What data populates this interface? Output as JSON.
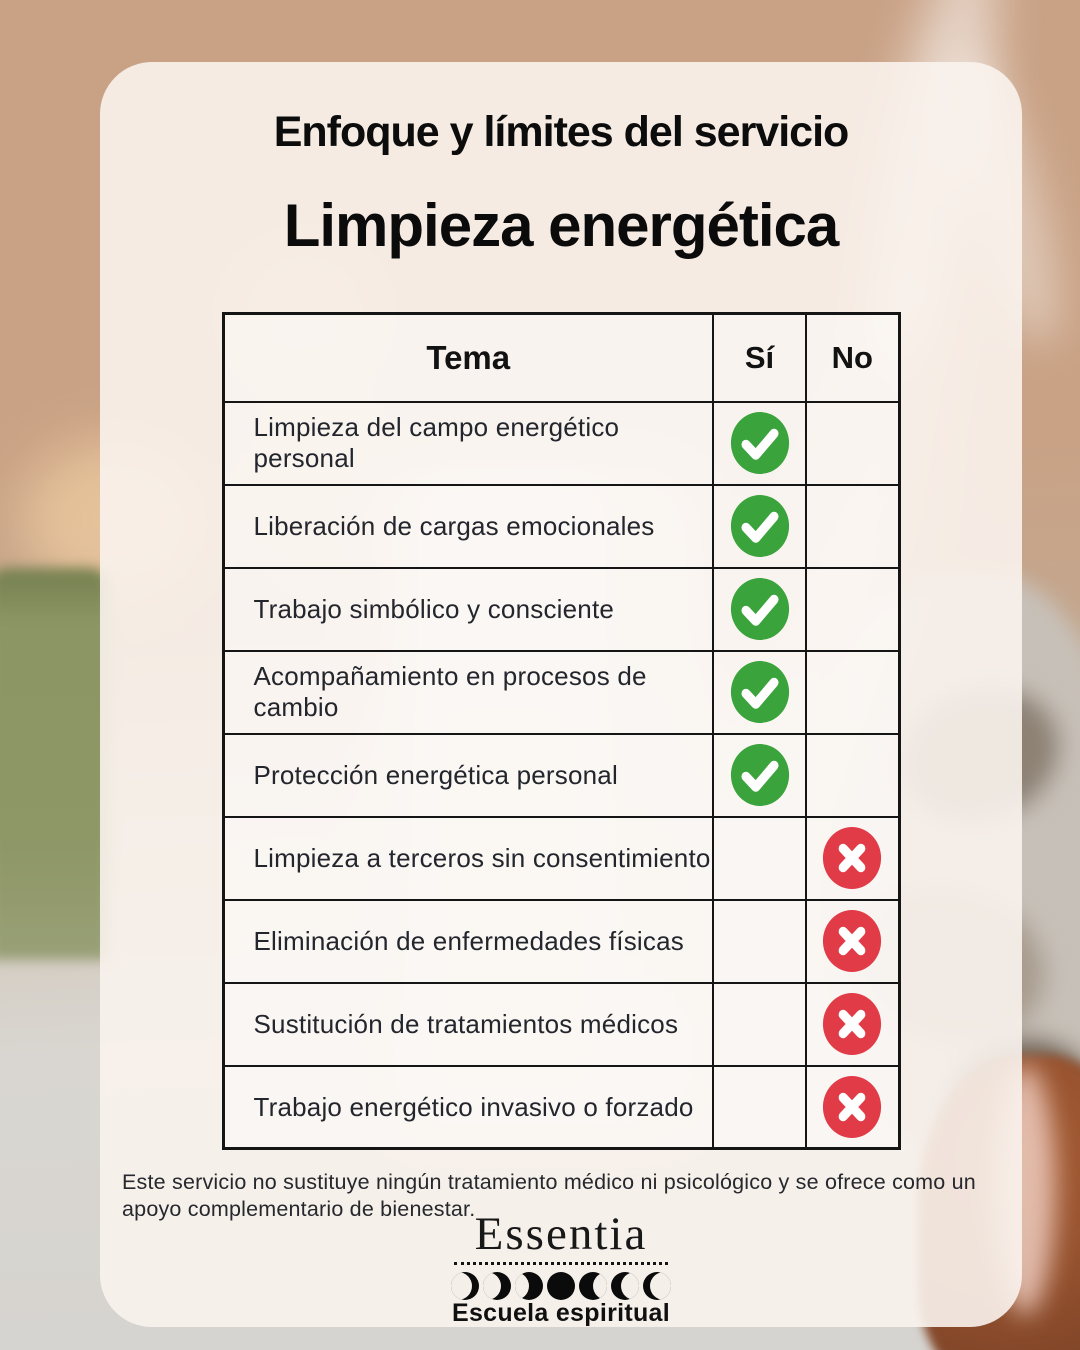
{
  "header": {
    "title": "Enfoque y límites del servicio",
    "subtitle": "Limpieza energética"
  },
  "table": {
    "headers": {
      "tema": "Tema",
      "si": "Sí",
      "no": "No"
    },
    "rows": [
      {
        "tema": "Limpieza del campo energético personal",
        "status": "si"
      },
      {
        "tema": "Liberación de cargas emocionales",
        "status": "si"
      },
      {
        "tema": "Trabajo simbólico y consciente",
        "status": "si"
      },
      {
        "tema": "Acompañamiento en procesos de cambio",
        "status": "si"
      },
      {
        "tema": "Protección energética personal",
        "status": "si"
      },
      {
        "tema": "Limpieza a terceros sin consentimiento",
        "status": "no"
      },
      {
        "tema": "Eliminación de enfermedades físicas",
        "status": "no"
      },
      {
        "tema": "Sustitución de tratamientos médicos",
        "status": "no"
      },
      {
        "tema": "Trabajo energético invasivo o forzado",
        "status": "no"
      }
    ]
  },
  "disclaimer": "Este servicio no sustituye ningún tratamiento médico ni psicológico y se ofrece como un apoyo complementario de bienestar.",
  "brand": {
    "name": "Essentia",
    "tagline": "Escuela espiritual",
    "moon_phases": [
      "waxing-crescent-thin",
      "waxing-crescent-medium",
      "waxing-gibbous",
      "full-moon",
      "waning-gibbous",
      "waning-crescent-medium",
      "waning-crescent-thin"
    ]
  },
  "colors": {
    "check_green": "#3aa33c",
    "cross_red": "#e23b48",
    "table_border": "#151515",
    "card_background": "#f8f2ec",
    "background_tan": "#c9a285"
  }
}
